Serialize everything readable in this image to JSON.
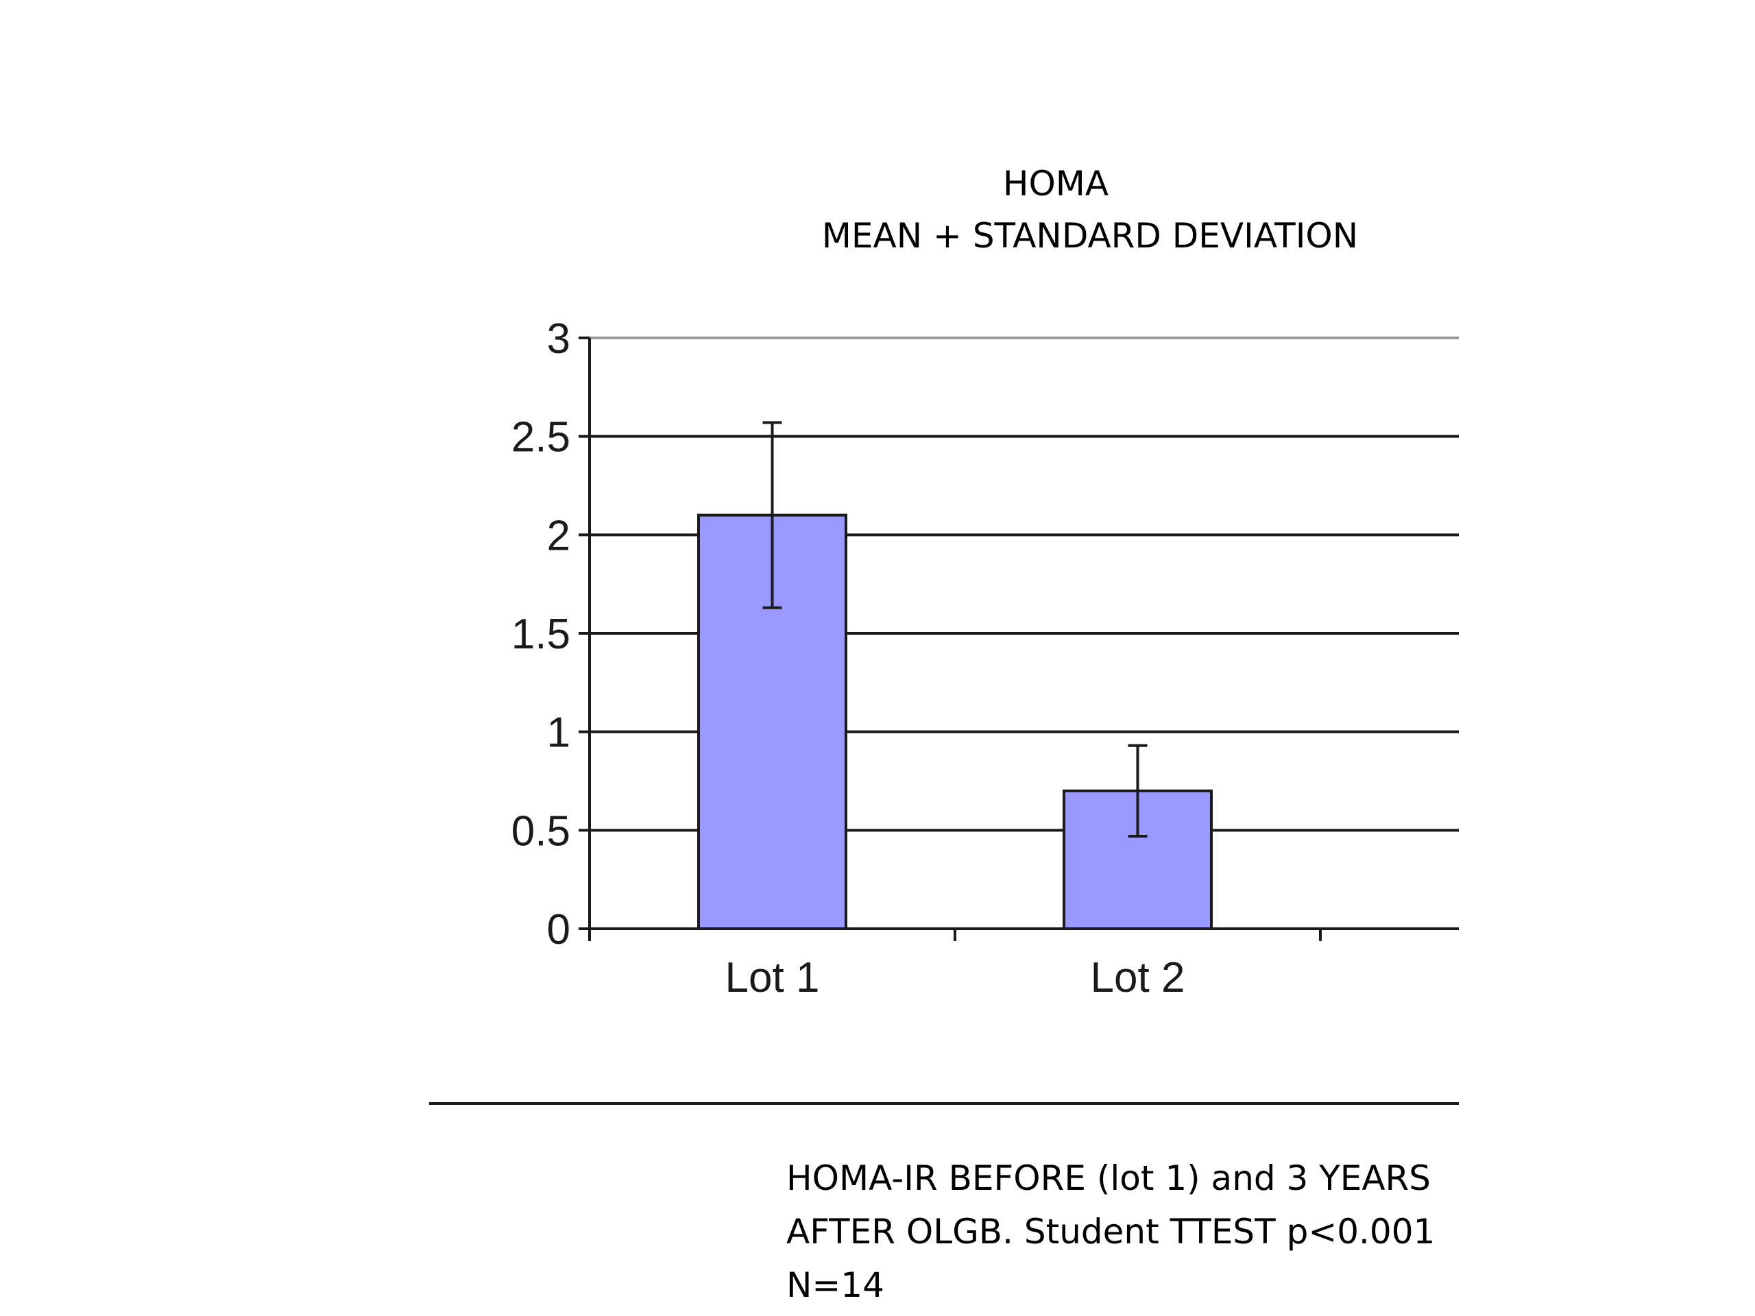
{
  "chart_data": {
    "type": "bar",
    "title": "HOMA",
    "subtitle": "MEAN + STANDARD DEVIATION",
    "categories": [
      "Lot 1",
      "Lot 2"
    ],
    "partial_category_label": "L",
    "values": [
      2.1,
      0.7
    ],
    "error": [
      0.47,
      0.23
    ],
    "ylim": [
      0,
      3
    ],
    "yticks": [
      0,
      0.5,
      1,
      1.5,
      2,
      2.5,
      3
    ],
    "ytick_labels": [
      "0",
      "0.5",
      "1",
      "1.5",
      "2",
      "2.5",
      "3"
    ],
    "grid": true,
    "bar_color": "#9999ff",
    "xlabel": "",
    "ylabel": ""
  },
  "caption": {
    "lines": [
      "HOMA-IR BEFORE (lot 1) and 3 YEARS",
      "AFTER OLGB. Student TTEST p<0.001",
      "N=14"
    ]
  }
}
